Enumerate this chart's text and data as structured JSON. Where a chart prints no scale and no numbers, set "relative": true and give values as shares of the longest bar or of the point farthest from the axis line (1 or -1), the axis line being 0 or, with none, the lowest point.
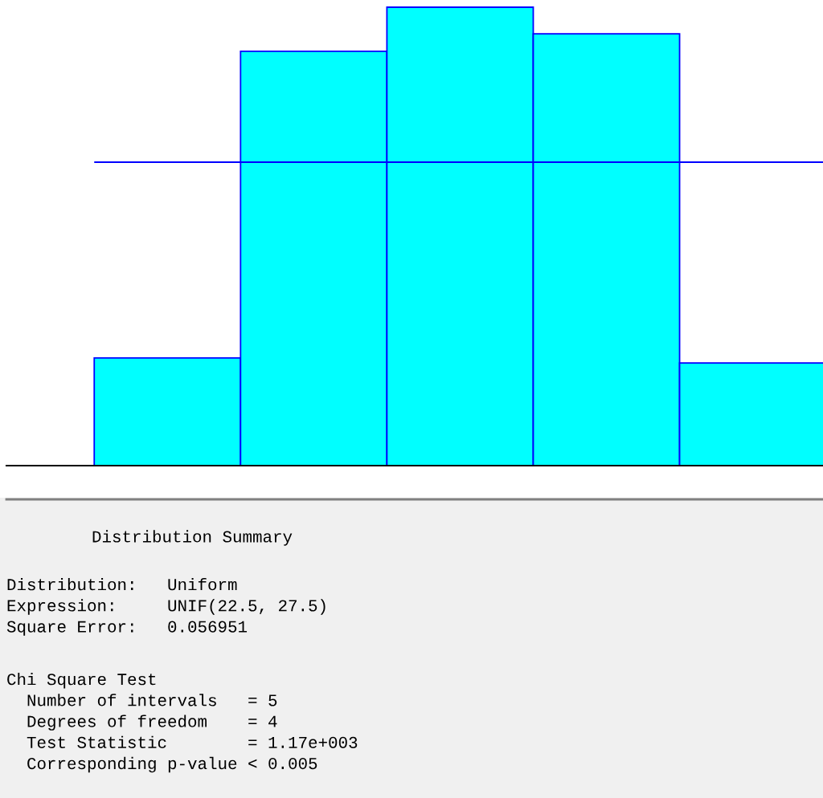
{
  "chart_data": {
    "type": "bar",
    "relative": true,
    "categories": [
      null,
      null,
      null,
      null,
      null
    ],
    "series": [
      {
        "color": "#00ffff",
        "values": [
          0.235,
          0.904,
          1.0,
          0.942,
          0.224
        ]
      }
    ],
    "ref_lines": [
      {
        "axis": "y",
        "value": 0.662,
        "color": "#0000ff"
      }
    ],
    "annotations": [
      "Distribution Summary",
      "Distribution:   Uniform\nExpression:     UNIF(22.5, 27.5)\nSquare Error:   0.056951",
      "Chi Square Test\n  Number of intervals   = 5\n  Degrees of freedom    = 4\n  Test Statistic        = 1.17e+003\n  Corresponding p-value < 0.005"
    ]
  }
}
